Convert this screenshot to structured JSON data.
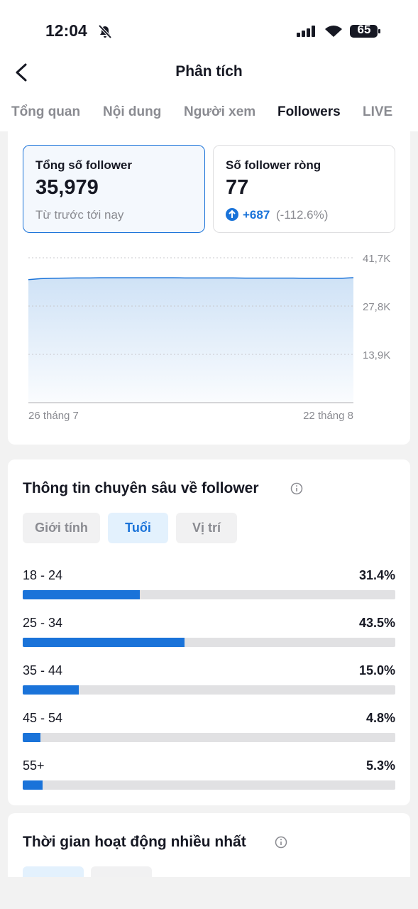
{
  "status_bar": {
    "time": "12:04",
    "battery": "65"
  },
  "header": {
    "title": "Phân tích"
  },
  "tabs": {
    "items": [
      "Tổng quan",
      "Nội dung",
      "Người xem",
      "Followers",
      "LIVE"
    ],
    "active": 3
  },
  "summary": {
    "total": {
      "label": "Tổng số follower",
      "value": "35,979",
      "note": "Từ trước tới nay"
    },
    "net": {
      "label": "Số follower ròng",
      "value": "77",
      "change": "+687",
      "change_pct": "(-112.6%)"
    }
  },
  "chart_data": {
    "type": "area",
    "categories": [
      "26 tháng 7",
      null,
      null,
      null,
      null,
      null,
      null,
      null,
      null,
      null,
      null,
      null,
      null,
      null,
      null,
      null,
      null,
      null,
      null,
      null,
      null,
      null,
      null,
      null,
      null,
      null,
      null,
      "22 tháng 8"
    ],
    "values": [
      35400,
      35700,
      35800,
      35850,
      35900,
      35900,
      35950,
      35950,
      35950,
      35950,
      35950,
      35950,
      35950,
      35900,
      35900,
      35900,
      35900,
      35900,
      35850,
      35850,
      35850,
      35850,
      35850,
      35800,
      35800,
      35800,
      35800,
      35979
    ],
    "color": "#1a73d9",
    "ylim": [
      0,
      41700
    ],
    "yticks": [
      {
        "value": 13900,
        "label": "13,9K"
      },
      {
        "value": 27800,
        "label": "27,8K"
      },
      {
        "value": 41700,
        "label": "41,7K"
      }
    ],
    "grid": true
  },
  "insights": {
    "title": "Thông tin chuyên sâu về follower",
    "filters": [
      "Giới tính",
      "Tuổi",
      "Vị trí"
    ],
    "active_filter": 1,
    "xlim": [
      0,
      100
    ],
    "rows": [
      {
        "label": "18 - 24",
        "value": 31.4,
        "value_label": "31.4%"
      },
      {
        "label": "25 - 34",
        "value": 43.5,
        "value_label": "43.5%"
      },
      {
        "label": "35 - 44",
        "value": 15.0,
        "value_label": "15.0%"
      },
      {
        "label": "45 - 54",
        "value": 4.8,
        "value_label": "4.8%"
      },
      {
        "label": "55+",
        "value": 5.3,
        "value_label": "5.3%"
      }
    ]
  },
  "activity": {
    "title": "Thời gian hoạt động nhiều nhất"
  }
}
